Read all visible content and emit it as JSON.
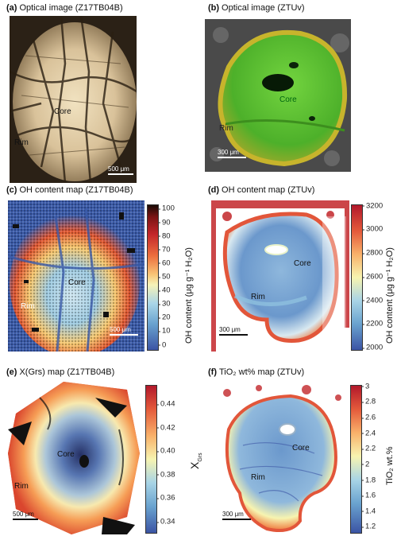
{
  "panels": {
    "a": {
      "letter": "(a)",
      "title": "Optical image (Z17TB04B)",
      "core": "Core",
      "rim": "Rim",
      "scale": "500 μm"
    },
    "b": {
      "letter": "(b)",
      "title": "Optical image (ZTUv)",
      "core": "Core",
      "rim": "Rim",
      "scale": "300 μm"
    },
    "c": {
      "letter": "(c)",
      "title": "OH content map (Z17TB04B)",
      "core": "Core",
      "rim": "Rim",
      "scale": "500 μm",
      "colorbar": {
        "label": "OH content (μg g⁻¹ H₂O)",
        "ticks": [
          "100",
          "90",
          "80",
          "70",
          "60",
          "50",
          "40",
          "30",
          "20",
          "10",
          "0"
        ]
      }
    },
    "d": {
      "letter": "(d)",
      "title": "OH content map (ZTUv)",
      "core": "Core",
      "rim": "Rim",
      "scale": "300 μm",
      "colorbar": {
        "label": "OH content (μg g⁻¹ H₂O)",
        "ticks": [
          "3200",
          "3000",
          "2800",
          "2600",
          "2400",
          "2200",
          "2000"
        ]
      }
    },
    "e": {
      "letter": "(e)",
      "title": "X(Grs) map (Z17TB04B)",
      "core": "Core",
      "rim": "Rim",
      "scale": "500 μm",
      "colorbar": {
        "label": "X",
        "label_sub": "Grs",
        "ticks": [
          "0.44",
          "0.42",
          "0.40",
          "0.38",
          "0.36",
          "0.34"
        ]
      }
    },
    "f": {
      "letter": "(f)",
      "title": "TiO₂ wt% map (ZTUv)",
      "core": "Core",
      "rim": "Rim",
      "scale": "300 μm",
      "colorbar": {
        "label": "TiO₂ wt.%",
        "ticks": [
          "3",
          "2.8",
          "2.6",
          "2.4",
          "2.2",
          "2",
          "1.8",
          "1.6",
          "1.4",
          "1.2"
        ]
      }
    }
  },
  "colors": {
    "spectral_top": "#b2182b",
    "spectral_mid": "#f7f4b0",
    "spectral_bottom": "#3b54a4",
    "optical_a": "#d9c7a0",
    "optical_b": "#5fc437"
  }
}
